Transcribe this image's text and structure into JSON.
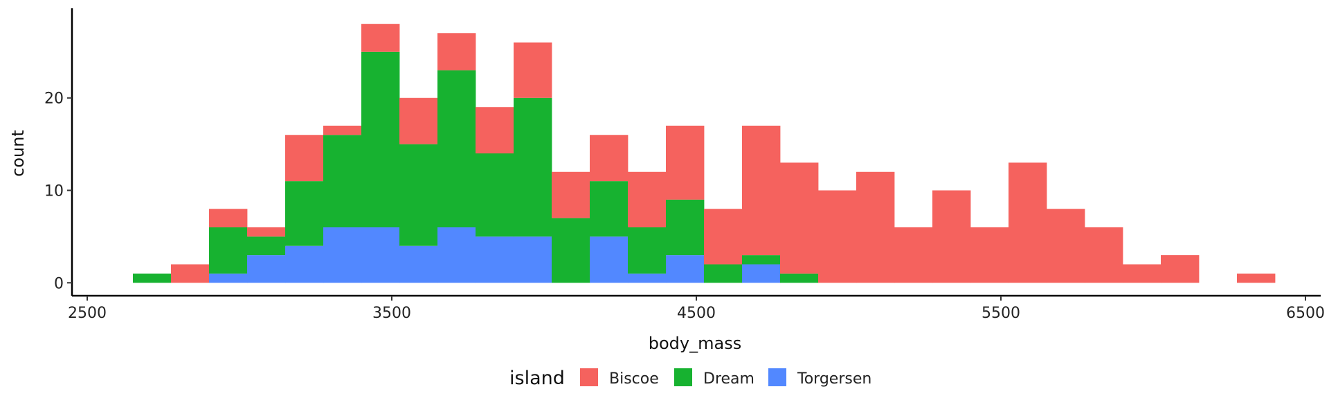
{
  "chart_data": {
    "type": "bar",
    "stacked": true,
    "title": "",
    "xlabel": "body_mass",
    "ylabel": "count",
    "xlim": [
      2450,
      6550
    ],
    "ylim": [
      -1.4,
      29.7
    ],
    "xticks": [
      2500,
      3500,
      4500,
      5500,
      6500
    ],
    "yticks": [
      0,
      10,
      20
    ],
    "grid": false,
    "bin_width": 125,
    "bin_starts": [
      2650,
      2775,
      2900,
      3025,
      3150,
      3275,
      3400,
      3525,
      3650,
      3775,
      3900,
      4025,
      4150,
      4275,
      4400,
      4525,
      4650,
      4775,
      4900,
      5025,
      5150,
      5275,
      5400,
      5525,
      5650,
      5775,
      5900,
      6025,
      6150,
      6275
    ],
    "legend": {
      "title": "island",
      "position": "bottom"
    },
    "series": [
      {
        "name": "Torgersen",
        "color": "#5288FF",
        "values": [
          0,
          0,
          1,
          3,
          4,
          6,
          6,
          4,
          6,
          5,
          5,
          0,
          5,
          1,
          3,
          0,
          2,
          0,
          0,
          0,
          0,
          0,
          0,
          0,
          0,
          0,
          0,
          0,
          0,
          0
        ]
      },
      {
        "name": "Dream",
        "color": "#17B230",
        "values": [
          1,
          0,
          5,
          2,
          7,
          10,
          19,
          11,
          17,
          9,
          15,
          7,
          6,
          5,
          6,
          2,
          1,
          1,
          0,
          0,
          0,
          0,
          0,
          0,
          0,
          0,
          0,
          0,
          0,
          0
        ]
      },
      {
        "name": "Biscoe",
        "color": "#F5625E",
        "values": [
          0,
          2,
          2,
          1,
          5,
          1,
          3,
          5,
          4,
          5,
          6,
          5,
          5,
          6,
          8,
          6,
          14,
          12,
          10,
          12,
          6,
          10,
          6,
          13,
          8,
          6,
          2,
          3,
          0,
          1
        ]
      }
    ],
    "legend_order": [
      "Biscoe",
      "Dream",
      "Torgersen"
    ]
  }
}
